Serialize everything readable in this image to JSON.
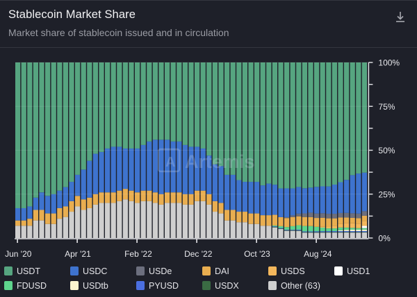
{
  "header": {
    "title": "Stablecoin Market Share",
    "subtitle": "Market share of stablecoin issued and in circulation",
    "download_icon": "download-icon"
  },
  "watermark": "Artemis",
  "chart_data": {
    "type": "bar",
    "stacked": true,
    "normalized": true,
    "title": "Stablecoin Market Share",
    "subtitle": "Market share of stablecoin issued and in circulation",
    "xlabel": "",
    "ylabel": "",
    "ylim": [
      0,
      100
    ],
    "y_axis_position": "right",
    "y_ticks": [
      "0%",
      "25%",
      "50%",
      "75%",
      "100%"
    ],
    "x_tick_labels": [
      "Jun '20",
      "Apr '21",
      "Feb '22",
      "Dec '22",
      "Oct '23",
      "Aug '24"
    ],
    "x_tick_indices": [
      0,
      10,
      20,
      30,
      40,
      50
    ],
    "categories": [
      "Jun '20",
      "Jul '20",
      "Aug '20",
      "Sep '20",
      "Oct '20",
      "Nov '20",
      "Dec '20",
      "Jan '21",
      "Feb '21",
      "Mar '21",
      "Apr '21",
      "May '21",
      "Jun '21",
      "Jul '21",
      "Aug '21",
      "Sep '21",
      "Oct '21",
      "Nov '21",
      "Dec '21",
      "Jan '22",
      "Feb '22",
      "Mar '22",
      "Apr '22",
      "May '22",
      "Jun '22",
      "Jul '22",
      "Aug '22",
      "Sep '22",
      "Oct '22",
      "Nov '22",
      "Dec '22",
      "Jan '23",
      "Feb '23",
      "Mar '23",
      "Apr '23",
      "May '23",
      "Jun '23",
      "Jul '23",
      "Aug '23",
      "Sep '23",
      "Oct '23",
      "Nov '23",
      "Dec '23",
      "Jan '24",
      "Feb '24",
      "Mar '24",
      "Apr '24",
      "May '24",
      "Jun '24",
      "Jul '24",
      "Aug '24",
      "Sep '24",
      "Oct '24",
      "Nov '24",
      "Dec '24",
      "Jan '25",
      "Feb '25",
      "Mar '25",
      "Apr '25"
    ],
    "legend_position": "bottom",
    "series": [
      {
        "name": "Other (63)",
        "color": "#cfcfcf",
        "values": [
          7,
          7,
          7,
          10,
          10,
          8,
          8,
          11,
          12,
          15,
          18,
          16,
          17,
          19,
          20,
          20,
          20,
          21,
          22,
          21,
          20,
          21,
          21,
          20,
          19,
          20,
          20,
          20,
          19,
          19,
          21,
          21,
          19,
          15,
          14,
          10,
          10,
          9,
          9,
          8,
          8,
          7,
          7,
          6,
          5,
          4,
          4,
          4,
          3,
          3,
          3,
          3,
          3,
          3,
          3,
          3,
          3,
          3,
          3
        ]
      },
      {
        "name": "USDX",
        "color": "#3a6b43",
        "values": [
          0,
          0,
          0,
          0,
          0,
          0,
          0,
          0,
          0,
          0,
          0,
          0,
          0,
          0,
          0,
          0,
          0,
          0,
          0,
          0,
          0,
          0,
          0,
          0,
          0,
          0,
          0,
          0,
          0,
          0,
          0,
          0,
          0,
          0,
          0,
          0,
          0,
          0,
          0,
          0,
          0,
          0,
          0,
          0.3,
          0.3,
          0.3,
          0.3,
          0.3,
          0.3,
          0.3,
          0.3,
          0.3,
          0.3,
          0.3,
          0.3,
          0.3,
          0.3,
          0.3,
          0.3
        ]
      },
      {
        "name": "PYUSD",
        "color": "#4b6fe0",
        "values": [
          0,
          0,
          0,
          0,
          0,
          0,
          0,
          0,
          0,
          0,
          0,
          0,
          0,
          0,
          0,
          0,
          0,
          0,
          0,
          0,
          0,
          0,
          0,
          0,
          0,
          0,
          0,
          0,
          0,
          0,
          0,
          0,
          0,
          0,
          0,
          0,
          0,
          0,
          0,
          0,
          0,
          0,
          0,
          0.3,
          0.3,
          0.3,
          0.3,
          0.4,
          0.4,
          0.4,
          0.5,
          0.5,
          0.5,
          0.5,
          0.5,
          0.5,
          0.5,
          0.5,
          0.5
        ]
      },
      {
        "name": "USDtb",
        "color": "#fbf5cf",
        "values": [
          0,
          0,
          0,
          0,
          0,
          0,
          0,
          0,
          0,
          0,
          0,
          0,
          0,
          0,
          0,
          0,
          0,
          0,
          0,
          0,
          0,
          0,
          0,
          0,
          0,
          0,
          0,
          0,
          0,
          0,
          0,
          0,
          0,
          0,
          0,
          0,
          0,
          0,
          0,
          0,
          0,
          0,
          0,
          0,
          0,
          0,
          0,
          0,
          0,
          0,
          0,
          0,
          0,
          0,
          0.5,
          0.7,
          0.8,
          0.8,
          0.8
        ]
      },
      {
        "name": "FDUSD",
        "color": "#5ed48d",
        "values": [
          0,
          0,
          0,
          0,
          0,
          0,
          0,
          0,
          0,
          0,
          0,
          0,
          0,
          0,
          0,
          0,
          0,
          0,
          0,
          0,
          0,
          0,
          0,
          0,
          0,
          0,
          0,
          0,
          0,
          0,
          0,
          0,
          0,
          0,
          0,
          0,
          0,
          0,
          0,
          0,
          0,
          0,
          0,
          0.5,
          1,
          1.5,
          2,
          2.5,
          3,
          3,
          2.5,
          2,
          1.5,
          1.5,
          1.5,
          1.2,
          1,
          0.8,
          0.8
        ]
      },
      {
        "name": "USD1",
        "color": "#ffffff",
        "values": [
          0,
          0,
          0,
          0,
          0,
          0,
          0,
          0,
          0,
          0,
          0,
          0,
          0,
          0,
          0,
          0,
          0,
          0,
          0,
          0,
          0,
          0,
          0,
          0,
          0,
          0,
          0,
          0,
          0,
          0,
          0,
          0,
          0,
          0,
          0,
          0,
          0,
          0,
          0,
          0,
          0,
          0,
          0,
          0,
          0,
          0,
          0,
          0,
          0,
          0,
          0,
          0,
          0,
          0,
          0,
          0,
          0,
          0,
          1.2
        ]
      },
      {
        "name": "USDS",
        "color": "#f3b75c",
        "values": [
          0,
          0,
          0,
          0,
          0,
          0,
          0,
          0,
          0,
          0,
          0,
          0,
          0,
          0,
          0,
          0,
          0,
          0,
          0,
          0,
          0,
          0,
          0,
          0,
          0,
          0,
          0,
          0,
          0,
          0,
          0,
          0,
          0,
          0,
          0,
          0,
          0,
          0,
          0,
          0,
          0,
          0,
          0,
          0,
          0,
          0,
          0,
          0,
          0,
          0,
          0,
          0.5,
          1,
          1.5,
          2,
          2.5,
          2.5,
          2.5,
          2.5
        ]
      },
      {
        "name": "DAI",
        "color": "#e9ae50",
        "values": [
          3,
          3,
          4,
          6,
          6,
          6,
          6,
          6,
          6,
          6,
          6,
          6,
          6,
          6,
          6,
          6,
          6,
          6,
          6,
          6,
          6,
          6,
          6,
          6,
          6,
          6,
          6,
          6,
          6,
          6,
          6,
          6,
          6,
          6,
          6,
          6,
          6,
          6,
          6,
          6,
          6,
          6,
          6,
          6,
          5,
          5,
          5,
          5,
          5,
          5,
          5,
          5,
          4.5,
          4,
          3.5,
          3,
          3,
          3,
          3
        ]
      },
      {
        "name": "USDe",
        "color": "#6c6f7e",
        "values": [
          0,
          0,
          0,
          0,
          0,
          0,
          0,
          0,
          0,
          0,
          0,
          0,
          0,
          0,
          0,
          0,
          0,
          0,
          0,
          0,
          0,
          0,
          0,
          0,
          0,
          0,
          0,
          0,
          0,
          0,
          0,
          0,
          0,
          0,
          0,
          0,
          0,
          0,
          0,
          0,
          0,
          0,
          0,
          0,
          0,
          0.5,
          1,
          1.5,
          2,
          2.5,
          2.5,
          2.5,
          2.5,
          2.5,
          2.5,
          2.5,
          2.5,
          2.5,
          2.5
        ]
      },
      {
        "name": "USDC",
        "color": "#3e73ce",
        "values": [
          7,
          7,
          7,
          7,
          10,
          10,
          11,
          10,
          11,
          11,
          12,
          17,
          21,
          23,
          23,
          25,
          26,
          25,
          23,
          24,
          25,
          26,
          28,
          30,
          31,
          30,
          29,
          29,
          28,
          27,
          25,
          24,
          22,
          21,
          21,
          20,
          20,
          18,
          17,
          18,
          18,
          17,
          18,
          17,
          16,
          16,
          15,
          15,
          14,
          14,
          15,
          15,
          15,
          16,
          17,
          18,
          21,
          22,
          21
        ]
      },
      {
        "name": "USDT",
        "color": "#56a580",
        "values": [
          83,
          83,
          82,
          77,
          74,
          76,
          75,
          73,
          71,
          68,
          64,
          61,
          56,
          52,
          51,
          49,
          48,
          48,
          49,
          49,
          49,
          47,
          45,
          44,
          44,
          44,
          45,
          45,
          47,
          48,
          48,
          49,
          53,
          58,
          59,
          64,
          64,
          67,
          68,
          68,
          68,
          70,
          69,
          69,
          70,
          70,
          70,
          70,
          70,
          70,
          70,
          69,
          68,
          67,
          66,
          64,
          62,
          61,
          60
        ]
      }
    ]
  },
  "legend": [
    {
      "label": "USDT",
      "color": "#56a580"
    },
    {
      "label": "USDC",
      "color": "#3e73ce"
    },
    {
      "label": "USDe",
      "color": "#6c6f7e"
    },
    {
      "label": "DAI",
      "color": "#e9ae50"
    },
    {
      "label": "USDS",
      "color": "#f3b75c"
    },
    {
      "label": "USD1",
      "color": "#ffffff"
    },
    {
      "label": "FDUSD",
      "color": "#5ed48d"
    },
    {
      "label": "USDtb",
      "color": "#fbf5cf"
    },
    {
      "label": "PYUSD",
      "color": "#4b6fe0"
    },
    {
      "label": "USDX",
      "color": "#3a6b43"
    },
    {
      "label": "Other (63)",
      "color": "#cfcfcf"
    }
  ]
}
